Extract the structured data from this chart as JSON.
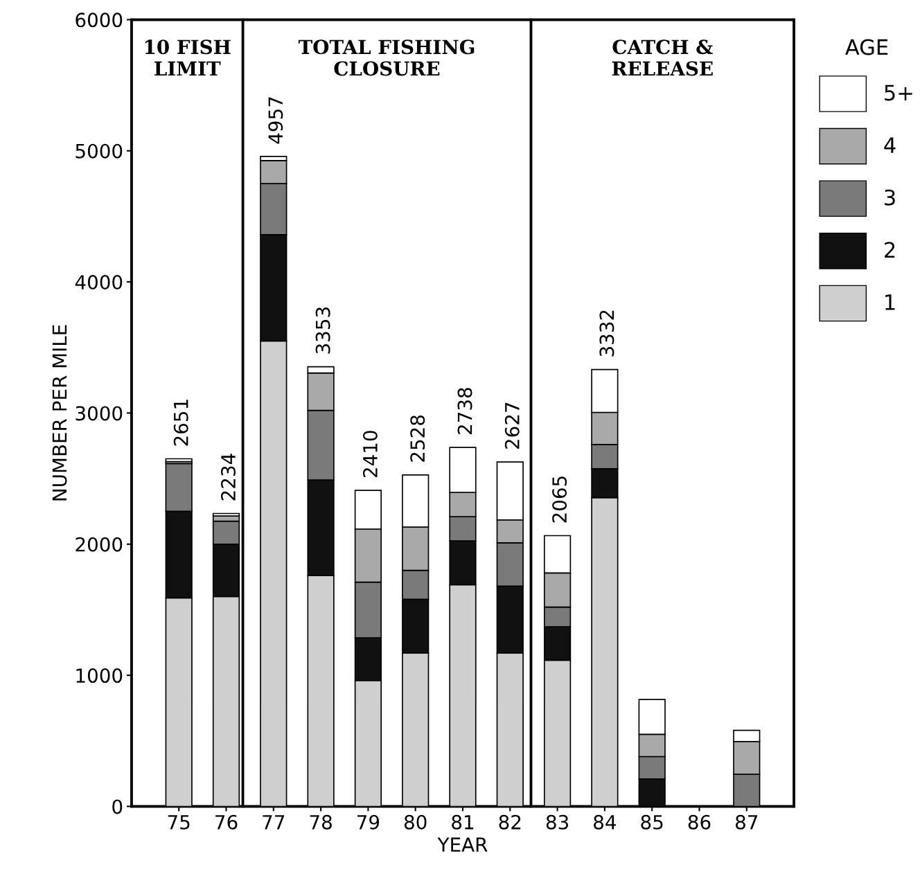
{
  "chart_data": {
    "type": "bar",
    "stacked": true,
    "xlabel": "YEAR",
    "ylabel": "NUMBER PER MILE",
    "legend_title": "AGE",
    "legend": "top right",
    "categories": [
      "75",
      "76",
      "77",
      "78",
      "79",
      "80",
      "81",
      "82",
      "83",
      "84",
      "85",
      "86",
      "87"
    ],
    "series": [
      {
        "name": "1",
        "color": "#cfcfcf",
        "values": [
          1590,
          1600,
          3550,
          1760,
          960,
          1170,
          1690,
          1170,
          1115,
          2355,
          0,
          null,
          0
        ]
      },
      {
        "name": "2",
        "color": "#111111",
        "values": [
          660,
          400,
          810,
          730,
          325,
          410,
          335,
          510,
          255,
          220,
          210,
          null,
          0
        ]
      },
      {
        "name": "3",
        "color": "#7a7a7a",
        "values": [
          365,
          175,
          390,
          530,
          425,
          220,
          185,
          330,
          150,
          185,
          170,
          null,
          245
        ]
      },
      {
        "name": "4",
        "color": "#a9a9a9",
        "values": [
          15,
          40,
          175,
          285,
          405,
          330,
          185,
          175,
          260,
          245,
          170,
          null,
          250
        ]
      },
      {
        "name": "5+",
        "color": "#ffffff",
        "values": [
          21,
          19,
          32,
          48,
          295,
          398,
          343,
          442,
          285,
          327,
          265,
          null,
          85
        ]
      }
    ],
    "totals": [
      "2651",
      "2234",
      "4957",
      "3353",
      "2410",
      "2528",
      "2738",
      "2627",
      "2065",
      "3332",
      null,
      null,
      null
    ],
    "ylim": [
      0,
      6000
    ],
    "yticks": [
      0,
      1000,
      2000,
      3000,
      4000,
      5000,
      6000
    ],
    "grid": false,
    "annotations": [
      "10 FISH\nLIMIT",
      "TOTAL FISHING\nCLOSURE",
      "CATCH &\nRELEASE"
    ]
  }
}
